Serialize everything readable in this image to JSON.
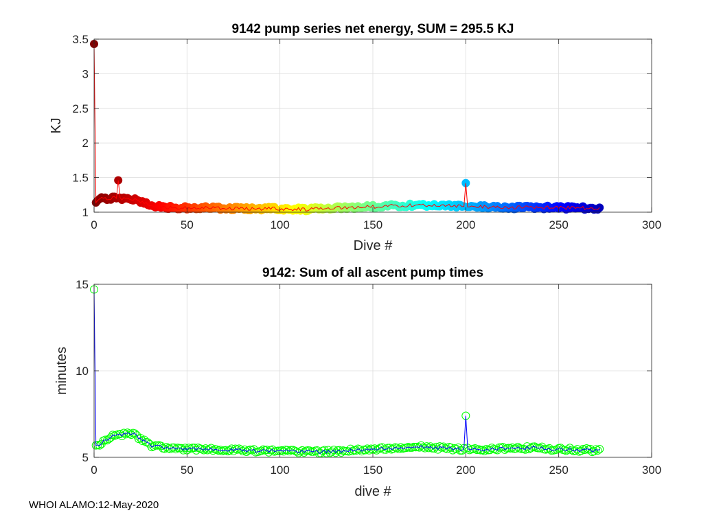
{
  "footer_text": "WHOI ALAMO:12-May-2020",
  "chart_data": [
    {
      "type": "scatter",
      "title": "9142 pump series net energy, SUM = 295.5 KJ",
      "xlabel": "Dive #",
      "ylabel": "KJ",
      "xlim": [
        0,
        300
      ],
      "ylim": [
        1,
        3.5
      ],
      "xticks": [
        0,
        50,
        100,
        150,
        200,
        250,
        300
      ],
      "yticks": [
        1,
        1.5,
        2,
        2.5,
        3,
        3.5
      ],
      "ytick_labels": [
        "1",
        "1.5",
        "2",
        "2.5",
        "3",
        "3.5"
      ],
      "grid": true,
      "line_color": "#ff0000",
      "marker_colormap": "jet",
      "notable_points": [
        {
          "x": 0,
          "y": 3.43
        },
        {
          "x": 13,
          "y": 1.46
        },
        {
          "x": 200,
          "y": 1.42
        }
      ],
      "x_last": 272,
      "baseline": [
        [
          0,
          1.15
        ],
        [
          5,
          1.2
        ],
        [
          15,
          1.2
        ],
        [
          22,
          1.19
        ],
        [
          28,
          1.13
        ],
        [
          35,
          1.08
        ],
        [
          45,
          1.06
        ],
        [
          60,
          1.06
        ],
        [
          80,
          1.05
        ],
        [
          100,
          1.05
        ],
        [
          115,
          1.04
        ],
        [
          130,
          1.06
        ],
        [
          150,
          1.08
        ],
        [
          170,
          1.1
        ],
        [
          190,
          1.09
        ],
        [
          205,
          1.08
        ],
        [
          220,
          1.07
        ],
        [
          240,
          1.07
        ],
        [
          260,
          1.06
        ],
        [
          272,
          1.06
        ]
      ],
      "noise": 0.025
    },
    {
      "type": "line",
      "title": "9142: Sum of all ascent pump times",
      "xlabel": "dive #",
      "ylabel": "minutes",
      "xlim": [
        0,
        300
      ],
      "ylim": [
        5,
        15
      ],
      "xticks": [
        0,
        50,
        100,
        150,
        200,
        250,
        300
      ],
      "yticks": [
        5,
        10,
        15
      ],
      "ytick_labels": [
        "5",
        "10",
        "15"
      ],
      "grid": true,
      "line_color": "#0000ff",
      "marker_color": "#00ff00",
      "notable_points": [
        {
          "x": 0,
          "y": 14.7
        },
        {
          "x": 200,
          "y": 7.4
        }
      ],
      "x_last": 272,
      "baseline": [
        [
          0,
          5.6
        ],
        [
          5,
          5.9
        ],
        [
          10,
          6.3
        ],
        [
          15,
          6.3
        ],
        [
          20,
          6.4
        ],
        [
          25,
          6.1
        ],
        [
          30,
          5.7
        ],
        [
          40,
          5.5
        ],
        [
          60,
          5.45
        ],
        [
          80,
          5.4
        ],
        [
          100,
          5.35
        ],
        [
          120,
          5.3
        ],
        [
          140,
          5.4
        ],
        [
          160,
          5.55
        ],
        [
          175,
          5.6
        ],
        [
          195,
          5.5
        ],
        [
          210,
          5.45
        ],
        [
          235,
          5.55
        ],
        [
          255,
          5.45
        ],
        [
          272,
          5.4
        ]
      ],
      "noise": 0.1
    }
  ]
}
